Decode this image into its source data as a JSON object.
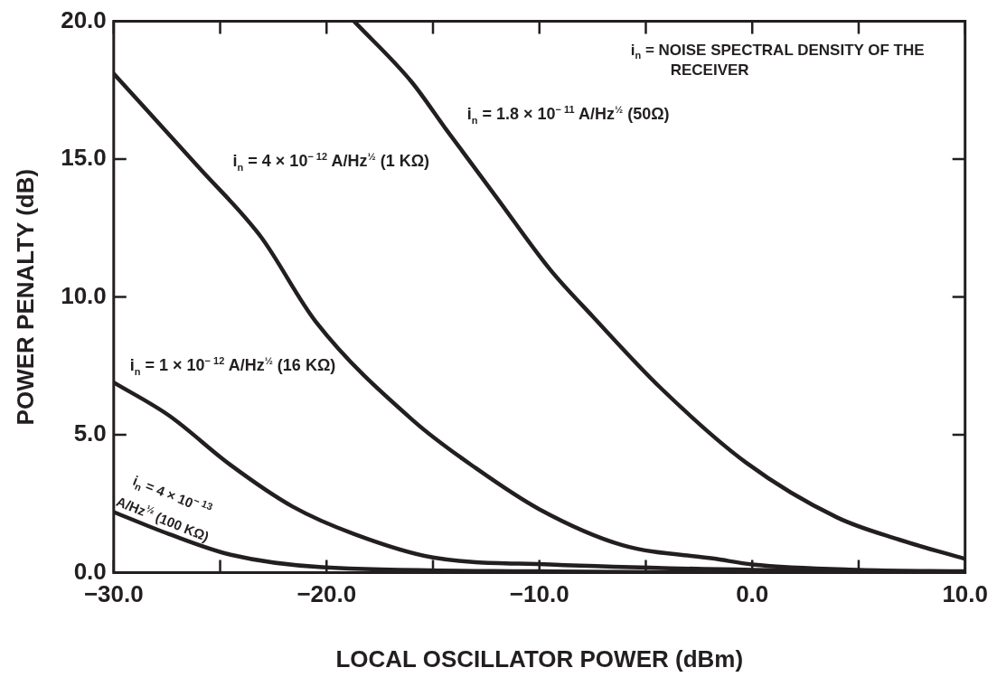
{
  "chart_data": {
    "type": "line",
    "xlabel": "LOCAL OSCILLATOR POWER (dBm)",
    "ylabel": "POWER PENALTY (dB)",
    "xlim": [
      -30,
      10
    ],
    "ylim": [
      0,
      20
    ],
    "xticks": [
      {
        "value": -30,
        "label": "−30.0"
      },
      {
        "value": -25,
        "label": null
      },
      {
        "value": -20,
        "label": "−20.0"
      },
      {
        "value": -15,
        "label": null
      },
      {
        "value": -10,
        "label": "−10.0"
      },
      {
        "value": -5,
        "label": null
      },
      {
        "value": 0,
        "label": "0.0"
      },
      {
        "value": 5,
        "label": null
      },
      {
        "value": 10,
        "label": "10.0"
      }
    ],
    "yticks": [
      {
        "value": 0,
        "label": "0.0"
      },
      {
        "value": 5,
        "label": "5.0"
      },
      {
        "value": 10,
        "label": "10.0"
      },
      {
        "value": 15,
        "label": "15.0"
      },
      {
        "value": 20,
        "label": "20.0"
      }
    ],
    "marker": "none",
    "line_style": "solid",
    "grid": false,
    "series": [
      {
        "name": "i$_{n}$ = 1.8 × 10$^{− 11}$ A/Hz$^{½}$ (50Ω)",
        "color": "#231f20",
        "x": [
          -18.7,
          -16,
          -14.4,
          -12,
          -9.5,
          -7.5,
          -4.3,
          -0.3,
          4,
          6.9,
          10
        ],
        "values": [
          20,
          17.8,
          16.1,
          13.6,
          11,
          9.3,
          6.7,
          4,
          2,
          1.2,
          0.5
        ]
      },
      {
        "name": "i$_{n}$ = 4 × 10$^{− 12}$ A/Hz$^{½}$ (1 KΩ)",
        "color": "#231f20",
        "x": [
          -30,
          -26,
          -23.1,
          -20.5,
          -15.9,
          -13,
          -10,
          -6.1,
          -1.7,
          0,
          5,
          10
        ],
        "values": [
          18.1,
          14.7,
          12.2,
          9.1,
          5.5,
          3.8,
          2.3,
          1,
          0.5,
          0.3,
          0.1,
          0.05
        ]
      },
      {
        "name": "i$_{n}$ = 1 × 10$^{− 12}$ A/Hz$^{½}$ (16 KΩ)",
        "color": "#231f20",
        "x": [
          -30,
          -27.4,
          -24.5,
          -21.6,
          -18.7,
          -15,
          -9.5,
          0,
          10
        ],
        "values": [
          6.9,
          5.7,
          3.9,
          2.4,
          1.4,
          0.55,
          0.3,
          0.1,
          0.02
        ]
      },
      {
        "name": "i$_{n}$ = 4 × 10$^{− 13}$ A/Hz$^{½}$ (100 KΩ)",
        "color": "#231f20",
        "x": [
          -30,
          -27.4,
          -24.5,
          -20.2,
          -10,
          0,
          10
        ],
        "values": [
          2.2,
          1.4,
          0.65,
          0.2,
          0.05,
          0,
          0
        ]
      }
    ],
    "annotations": [
      "i$_{n}$ = NOISE SPECTRAL DENSITY OF THE RECEIVER"
    ]
  }
}
